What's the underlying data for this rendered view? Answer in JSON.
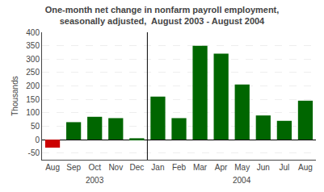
{
  "chart_data": {
    "type": "bar",
    "title": "One-month net change in nonfarm payroll employment,",
    "subtitle": "seasonally adjusted,  August 2003 - August 2004",
    "ylabel": "Thousands",
    "categories": [
      "Aug",
      "Sep",
      "Oct",
      "Nov",
      "Dec",
      "Jan",
      "Feb",
      "Mar",
      "Apr",
      "May",
      "Jun",
      "Jul",
      "Aug"
    ],
    "values": [
      -30,
      65,
      85,
      80,
      5,
      160,
      80,
      350,
      320,
      205,
      90,
      70,
      145
    ],
    "colors": [
      "#cc0000",
      "#006600",
      "#006600",
      "#006600",
      "#006600",
      "#006600",
      "#006600",
      "#006600",
      "#006600",
      "#006600",
      "#006600",
      "#006600",
      "#006600"
    ],
    "ylim": [
      -75,
      400
    ],
    "yticks": [
      -50,
      0,
      50,
      100,
      150,
      200,
      250,
      300,
      350,
      400
    ],
    "grid": true,
    "annotations": [
      {
        "text": "2003",
        "x": 2
      },
      {
        "text": "2004",
        "x": 9
      }
    ]
  }
}
